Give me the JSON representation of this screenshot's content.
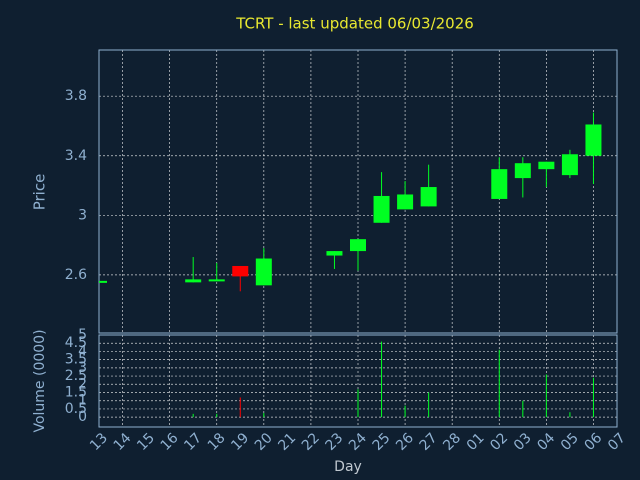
{
  "chart_data": {
    "type": "candlestick",
    "title": "TCRT - last updated 06/03/2026",
    "ylabel": "Price",
    "y2label": "Volume (0000)",
    "xlabel": "Day",
    "categories": [
      "13",
      "14",
      "15",
      "16",
      "17",
      "18",
      "19",
      "20",
      "21",
      "22",
      "23",
      "24",
      "25",
      "26",
      "27",
      "28",
      "01",
      "02",
      "03",
      "04",
      "05",
      "06",
      "07"
    ],
    "open": [
      2.56,
      null,
      null,
      null,
      2.55,
      2.56,
      2.66,
      2.53,
      null,
      null,
      2.73,
      2.76,
      2.95,
      3.04,
      3.06,
      null,
      null,
      3.11,
      3.25,
      3.31,
      3.27,
      3.4,
      null
    ],
    "high": [
      2.56,
      null,
      null,
      null,
      2.72,
      2.68,
      2.66,
      2.78,
      null,
      null,
      2.76,
      2.84,
      3.29,
      3.23,
      3.34,
      null,
      null,
      3.39,
      3.39,
      3.36,
      3.44,
      3.69,
      null
    ],
    "low": [
      2.56,
      null,
      null,
      null,
      2.55,
      2.56,
      2.49,
      2.53,
      null,
      null,
      2.64,
      2.63,
      2.95,
      3.04,
      3.06,
      null,
      null,
      3.11,
      3.12,
      3.19,
      3.25,
      3.21,
      null
    ],
    "close": [
      2.56,
      null,
      null,
      null,
      2.57,
      2.57,
      2.59,
      2.71,
      null,
      null,
      2.76,
      2.84,
      3.13,
      3.14,
      3.19,
      null,
      null,
      3.31,
      3.35,
      3.36,
      3.41,
      3.61,
      null
    ],
    "volume": [
      null,
      null,
      null,
      null,
      0.2,
      0.2,
      1.2,
      0.25,
      null,
      null,
      null,
      1.7,
      4.6,
      0.7,
      1.5,
      null,
      null,
      4.1,
      1.0,
      2.6,
      0.3,
      2.4,
      null
    ],
    "up_color": "#00ff22",
    "down_color": "#ff0000",
    "ylim": [
      2.21,
      4.11
    ],
    "yticks": [
      2.6,
      3,
      3.4,
      3.8
    ],
    "y2lim": [
      -0.6,
      5
    ],
    "y2ticks": [
      0,
      0.5,
      1,
      1.5,
      2,
      2.5,
      3,
      3.5,
      4,
      4.5,
      5
    ],
    "grid": true
  }
}
